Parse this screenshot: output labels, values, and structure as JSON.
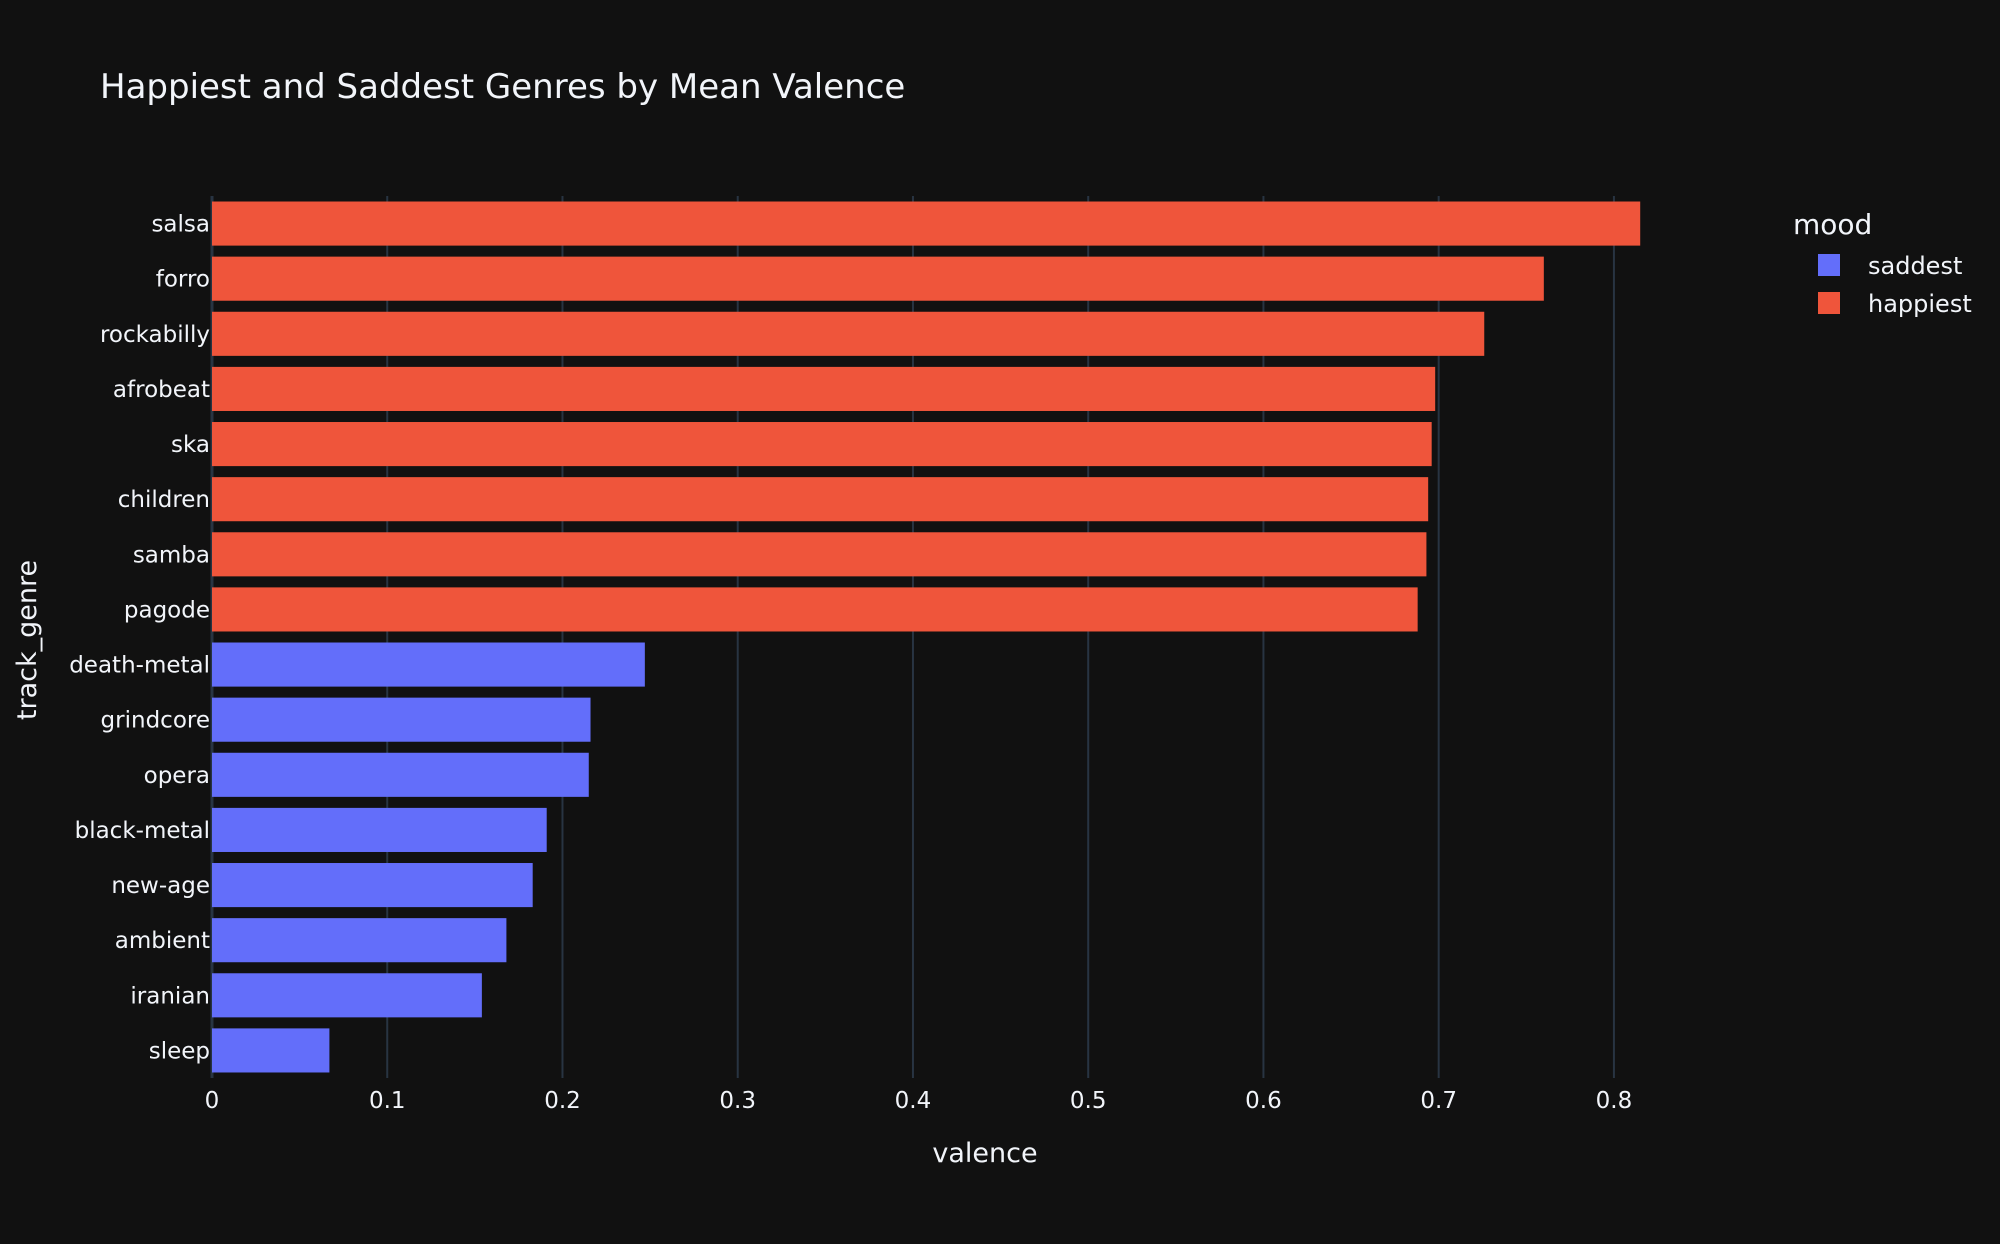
{
  "chart_data": {
    "type": "bar",
    "orientation": "horizontal",
    "title": "Happiest and Saddest Genres by Mean Valence",
    "xlabel": "valence",
    "ylabel": "track_genre",
    "xlim": [
      0,
      0.8514
    ],
    "xticks": [
      {
        "value": 0,
        "label": "0"
      },
      {
        "value": 0.1,
        "label": "0.1"
      },
      {
        "value": 0.2,
        "label": "0.2"
      },
      {
        "value": 0.3,
        "label": "0.3"
      },
      {
        "value": 0.4,
        "label": "0.4"
      },
      {
        "value": 0.5,
        "label": "0.5"
      },
      {
        "value": 0.6,
        "label": "0.6"
      },
      {
        "value": 0.7,
        "label": "0.7"
      },
      {
        "value": 0.8,
        "label": "0.8"
      }
    ],
    "grid": true,
    "legend": {
      "title": "mood",
      "position": "top-right",
      "entries": [
        {
          "name": "saddest",
          "color": "#636efa"
        },
        {
          "name": "happiest",
          "color": "#ef553b"
        }
      ]
    },
    "categories": [
      "salsa",
      "forro",
      "rockabilly",
      "afrobeat",
      "ska",
      "children",
      "samba",
      "pagode",
      "death-metal",
      "grindcore",
      "opera",
      "black-metal",
      "new-age",
      "ambient",
      "iranian",
      "sleep"
    ],
    "values": [
      0.815,
      0.76,
      0.726,
      0.698,
      0.696,
      0.694,
      0.693,
      0.688,
      0.247,
      0.216,
      0.215,
      0.191,
      0.183,
      0.168,
      0.154,
      0.067
    ],
    "moods": [
      "happiest",
      "happiest",
      "happiest",
      "happiest",
      "happiest",
      "happiest",
      "happiest",
      "happiest",
      "saddest",
      "saddest",
      "saddest",
      "saddest",
      "saddest",
      "saddest",
      "saddest",
      "saddest"
    ]
  },
  "colors": {
    "background": "#111111",
    "grid": "#283442",
    "text": "#f2f5fa"
  }
}
